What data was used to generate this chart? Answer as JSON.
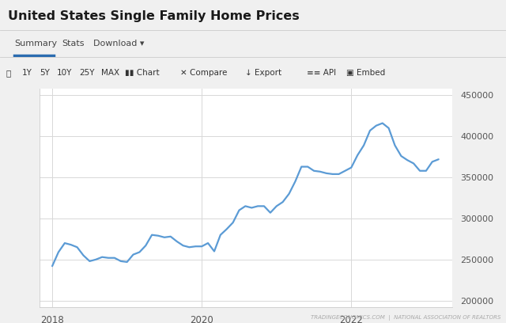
{
  "title": "United States Single Family Home Prices",
  "line_color": "#5b9bd5",
  "line_width": 1.6,
  "bg_color": "#ffffff",
  "outer_bg": "#f0f0f0",
  "tab_bg": "#ffffff",
  "toolbar_bg": "#f5f5f5",
  "grid_color": "#d8d8d8",
  "yticks": [
    200000,
    250000,
    300000,
    350000,
    400000,
    450000
  ],
  "ylim": [
    192000,
    458000
  ],
  "xlim": [
    2017.83,
    2023.35
  ],
  "footer_text": "TRADINGECONOMICS.COM  |  NATIONAL ASSOCIATION OF REALTORS",
  "x": [
    2018.0,
    2018.083,
    2018.167,
    2018.25,
    2018.333,
    2018.417,
    2018.5,
    2018.583,
    2018.667,
    2018.75,
    2018.833,
    2018.917,
    2019.0,
    2019.083,
    2019.167,
    2019.25,
    2019.333,
    2019.417,
    2019.5,
    2019.583,
    2019.667,
    2019.75,
    2019.833,
    2019.917,
    2020.0,
    2020.083,
    2020.167,
    2020.25,
    2020.333,
    2020.417,
    2020.5,
    2020.583,
    2020.667,
    2020.75,
    2020.833,
    2020.917,
    2021.0,
    2021.083,
    2021.167,
    2021.25,
    2021.333,
    2021.417,
    2021.5,
    2021.583,
    2021.667,
    2021.75,
    2021.833,
    2021.917,
    2022.0,
    2022.083,
    2022.167,
    2022.25,
    2022.333,
    2022.417,
    2022.5,
    2022.583,
    2022.667,
    2022.75,
    2022.833,
    2022.917,
    2023.0,
    2023.083,
    2023.167
  ],
  "y": [
    242000,
    259000,
    270000,
    268000,
    265000,
    255000,
    248000,
    250000,
    253000,
    252000,
    252000,
    248000,
    247000,
    256000,
    259000,
    267000,
    280000,
    279000,
    277000,
    278000,
    272000,
    267000,
    265000,
    266000,
    266000,
    270000,
    260000,
    280000,
    287000,
    295000,
    310000,
    315000,
    313000,
    315000,
    315000,
    307000,
    315000,
    320000,
    330000,
    345000,
    363000,
    363000,
    358000,
    357000,
    355000,
    354000,
    354000,
    358000,
    362000,
    377000,
    389000,
    407000,
    413000,
    416000,
    410000,
    389000,
    376000,
    371000,
    367000,
    358000,
    358000,
    369000,
    372000
  ]
}
